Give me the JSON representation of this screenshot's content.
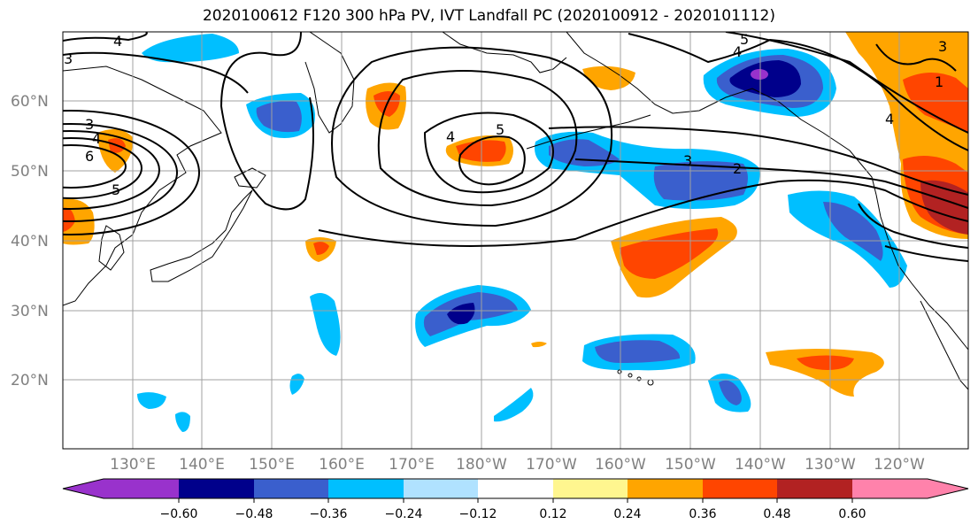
{
  "title": "2020100612 F120 300 hPa PV, IVT Landfall PC (2020100912 - 2020101112)",
  "lat_labels": [
    "60°N",
    "50°N",
    "40°N",
    "30°N",
    "20°N"
  ],
  "lon_labels": [
    "130°E",
    "140°E",
    "150°E",
    "160°E",
    "170°E",
    "180°W",
    "170°W",
    "160°W",
    "150°W",
    "140°W",
    "130°W",
    "120°W"
  ],
  "colorbar": {
    "colors": [
      "#9932cc",
      "#00008b",
      "#3a5fcd",
      "#00bfff",
      "#b0e2ff",
      "#ffffff",
      "#fff68f",
      "#ffa500",
      "#ff4500",
      "#b22222",
      "#ff82ab"
    ],
    "ticks": [
      "−0.60",
      "−0.48",
      "−0.36",
      "−0.24",
      "−0.12",
      "0.12",
      "0.24",
      "0.36",
      "0.48",
      "0.60"
    ]
  },
  "contour_labels": [
    "4",
    "3",
    "3",
    "4",
    "6",
    "5",
    "4",
    "5",
    "3",
    "2",
    "5",
    "4",
    "3",
    "1",
    "4"
  ],
  "colors": {
    "positive": "#ffa500",
    "strong_positive": "#ff4500",
    "very_positive": "#b22222",
    "negative": "#00bfff",
    "strong_negative": "#3a5fcd",
    "very_negative": "#00008b",
    "extreme_negative": "#9932cc"
  }
}
